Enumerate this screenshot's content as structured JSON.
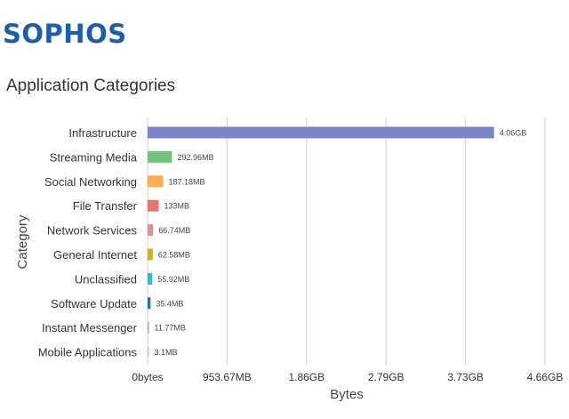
{
  "brand": {
    "logo_text": "SOPHOS",
    "logo_color": "#1a5fa8"
  },
  "page": {
    "title": "Application Categories"
  },
  "chart_data": {
    "type": "bar",
    "orientation": "horizontal",
    "title": "",
    "xlabel": "Bytes",
    "ylabel": "Category",
    "categories": [
      "Infrastructure",
      "Streaming Media",
      "Social Networking",
      "File Transfer",
      "Network Services",
      "General Internet",
      "Unclassified",
      "Software Update",
      "Instant Messenger",
      "Mobile Applications"
    ],
    "values_mb": [
      4157.44,
      292.96,
      187.18,
      133,
      66.74,
      62.58,
      55.92,
      35.4,
      11.77,
      3.1
    ],
    "data_labels": [
      "4.06GB",
      "292.96MB",
      "187.18MB",
      "133MB",
      "66.74MB",
      "62.58MB",
      "55.92MB",
      "35.4MB",
      "11.77MB",
      "3.1MB"
    ],
    "colors": [
      "#7b85c9",
      "#74c27d",
      "#fbb04b",
      "#e67473",
      "#d59595",
      "#c9b52a",
      "#2fbfd0",
      "#2a6fb0",
      "#a8a8c8",
      "#c8c8c8"
    ],
    "x_ticks_mb": [
      0,
      953.67,
      1907.35,
      2861.02,
      3814.7,
      4768.37
    ],
    "x_tick_labels": [
      "0bytes",
      "953.67MB",
      "1.86GB",
      "2.79GB",
      "3.73GB",
      "4.66GB"
    ],
    "xlim_mb": [
      0,
      4768.37
    ],
    "grid": true
  }
}
